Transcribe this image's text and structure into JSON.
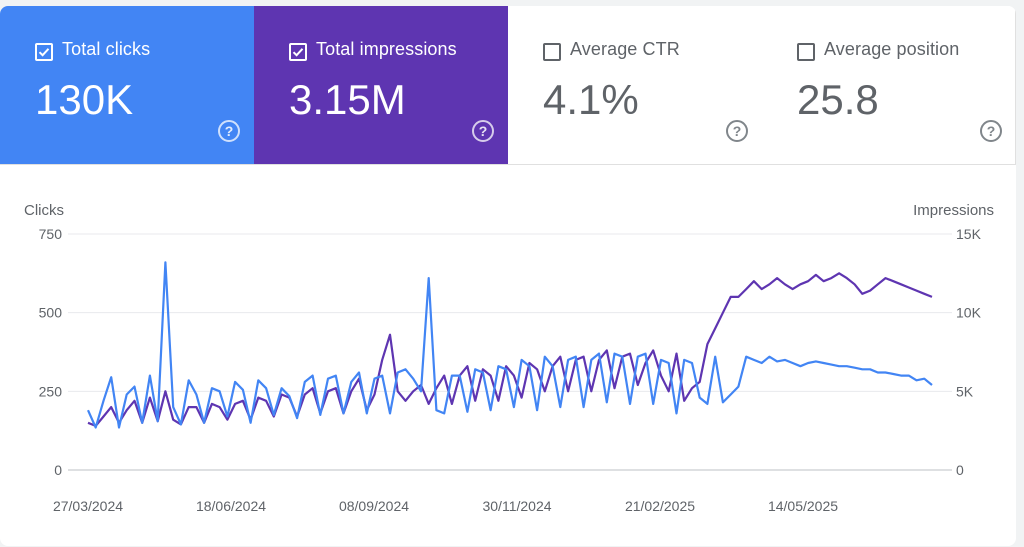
{
  "metrics": [
    {
      "label": "Total clicks",
      "value": "130K",
      "checked": true,
      "color": "#4285f4"
    },
    {
      "label": "Total impressions",
      "value": "3.15M",
      "checked": true,
      "color": "#5e35b1"
    },
    {
      "label": "Average CTR",
      "value": "4.1%",
      "checked": false,
      "color": "#ffffff"
    },
    {
      "label": "Average position",
      "value": "25.8",
      "checked": false,
      "color": "#ffffff"
    }
  ],
  "help_glyph": "?",
  "chart_data": {
    "type": "line",
    "left_axis_label": "Clicks",
    "right_axis_label": "Impressions",
    "left_ylim": [
      0,
      750
    ],
    "right_ylim": [
      0,
      15000
    ],
    "left_ticks": [
      "0",
      "250",
      "500",
      "750"
    ],
    "right_ticks": [
      "0",
      "5K",
      "10K",
      "15K"
    ],
    "x_tick_labels": [
      "27/03/2024",
      "18/06/2024",
      "08/09/2024",
      "30/11/2024",
      "21/02/2025",
      "14/05/2025"
    ],
    "date_range": [
      "27/03/2024",
      "14/07/2025"
    ],
    "series": [
      {
        "name": "Clicks",
        "axis": "left",
        "color": "#4285f4",
        "sample_every_days": 4,
        "values": [
          190,
          135,
          220,
          295,
          135,
          240,
          265,
          150,
          300,
          155,
          660,
          200,
          145,
          285,
          240,
          150,
          260,
          250,
          170,
          280,
          255,
          150,
          285,
          260,
          175,
          260,
          235,
          165,
          280,
          300,
          175,
          290,
          300,
          180,
          280,
          310,
          180,
          290,
          300,
          180,
          310,
          320,
          290,
          250,
          610,
          190,
          180,
          300,
          300,
          185,
          320,
          310,
          190,
          330,
          320,
          200,
          350,
          330,
          190,
          360,
          330,
          200,
          350,
          360,
          200,
          350,
          370,
          215,
          370,
          360,
          210,
          360,
          370,
          210,
          350,
          340,
          180,
          350,
          340,
          230,
          210,
          360,
          215,
          240,
          265,
          360,
          350,
          340,
          360,
          345,
          350,
          340,
          330,
          340,
          345,
          340,
          335,
          330,
          330,
          325,
          320,
          320,
          310,
          310,
          305,
          300,
          300,
          285,
          290,
          270
        ]
      },
      {
        "name": "Impressions",
        "axis": "right",
        "color": "#5e35b1",
        "sample_every_days": 4,
        "values": [
          3000,
          2800,
          3400,
          4000,
          3000,
          3800,
          4400,
          3000,
          4600,
          3100,
          5000,
          3200,
          2900,
          4000,
          4000,
          3000,
          4200,
          4000,
          3200,
          4200,
          4400,
          3200,
          4600,
          4400,
          3400,
          4800,
          4600,
          3400,
          4800,
          5200,
          3600,
          5000,
          5200,
          3600,
          5000,
          5800,
          3800,
          4800,
          7000,
          8600,
          5000,
          4400,
          5000,
          5400,
          4200,
          5200,
          6000,
          4200,
          6000,
          6600,
          4400,
          6400,
          6000,
          4400,
          6600,
          6000,
          4600,
          6800,
          6400,
          5000,
          6600,
          7200,
          5000,
          7000,
          7200,
          5000,
          7000,
          7600,
          5200,
          7200,
          7400,
          5400,
          6800,
          7600,
          6000,
          5000,
          7400,
          4400,
          5200,
          5600,
          8000,
          9000,
          10000,
          11000,
          11000,
          11500,
          12000,
          11500,
          11800,
          12200,
          11800,
          11500,
          11800,
          12000,
          12400,
          12000,
          12200,
          12500,
          12200,
          11800,
          11200,
          11400,
          11800,
          12200,
          12000,
          11800,
          11600,
          11400,
          11200,
          11000
        ]
      }
    ]
  }
}
